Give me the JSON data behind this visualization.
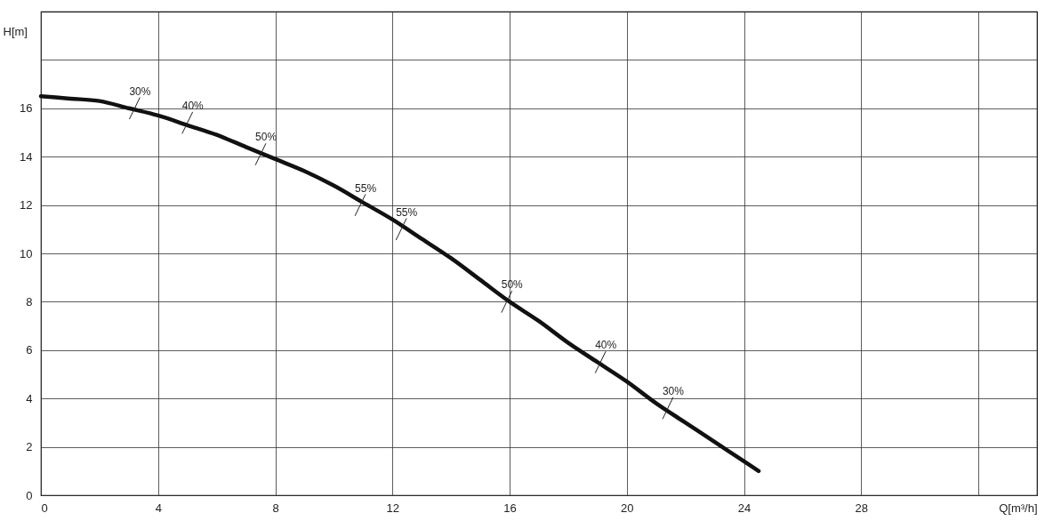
{
  "chart_data": {
    "type": "line",
    "xlabel": "Q[m³/h]",
    "ylabel": "H[m]",
    "x": [
      0,
      1,
      2,
      3,
      4,
      5,
      6,
      7,
      8,
      9,
      10,
      11,
      12,
      13,
      14,
      15,
      16,
      17,
      18,
      19,
      20,
      21,
      22,
      23,
      24,
      24.5
    ],
    "series": [
      {
        "color": "#111111",
        "values": [
          16.5,
          16.4,
          16.3,
          16.0,
          15.7,
          15.3,
          14.9,
          14.4,
          13.9,
          13.4,
          12.8,
          12.1,
          11.4,
          10.6,
          9.8,
          8.9,
          8.0,
          7.2,
          6.3,
          5.5,
          4.7,
          3.8,
          3.0,
          2.2,
          1.4,
          1.0
        ]
      }
    ],
    "xlim": [
      0,
      34
    ],
    "xticks": [
      0,
      4,
      8,
      12,
      16,
      20,
      24,
      28,
      {
        "value": 32,
        "label": null
      }
    ],
    "ylim": [
      0,
      20
    ],
    "yticks": [
      0,
      2,
      4,
      6,
      8,
      10,
      12,
      14,
      16,
      {
        "value": 18,
        "label": null
      }
    ],
    "grid": true,
    "marker": "none",
    "line_style": "solid",
    "annotations": [
      {
        "text": "30%",
        "x": 3.2,
        "y": 16.0
      },
      {
        "text": "40%",
        "x": 5.0,
        "y": 15.4
      },
      {
        "text": "50%",
        "x": 7.5,
        "y": 14.1
      },
      {
        "text": "55%",
        "x": 10.9,
        "y": 12.0
      },
      {
        "text": "55%",
        "x": 12.3,
        "y": 11.0
      },
      {
        "text": "50%",
        "x": 15.9,
        "y": 8.0
      },
      {
        "text": "40%",
        "x": 19.1,
        "y": 5.5
      },
      {
        "text": "30%",
        "x": 21.4,
        "y": 3.6
      }
    ]
  }
}
